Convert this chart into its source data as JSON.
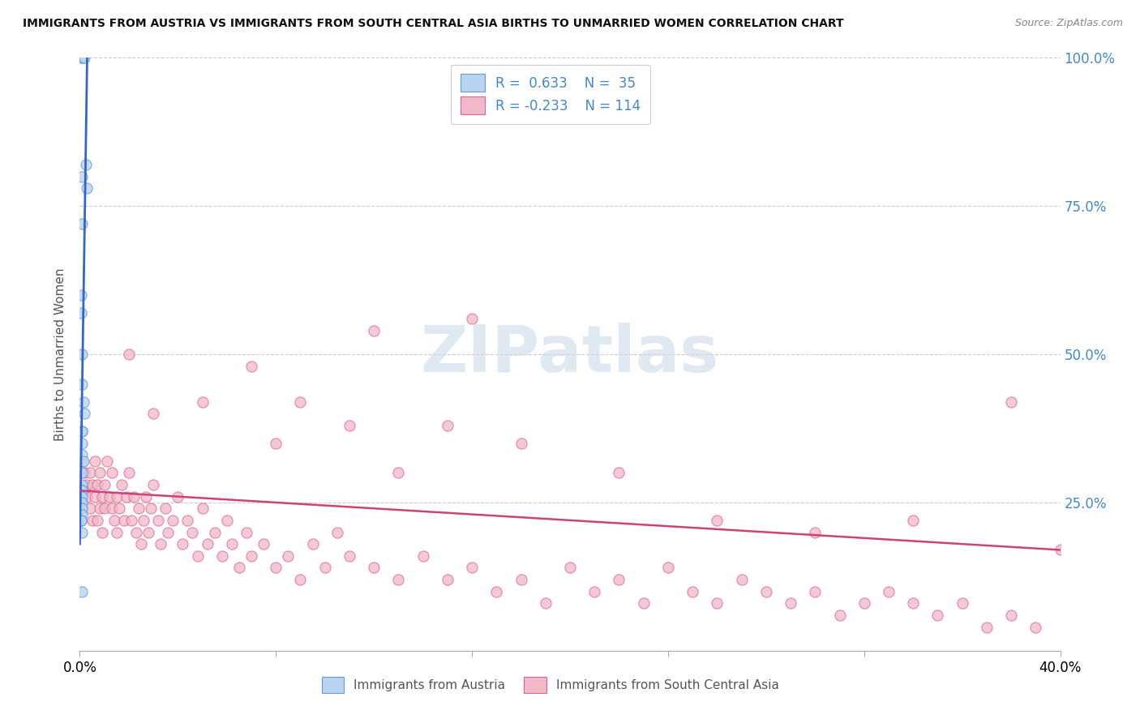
{
  "title": "IMMIGRANTS FROM AUSTRIA VS IMMIGRANTS FROM SOUTH CENTRAL ASIA BIRTHS TO UNMARRIED WOMEN CORRELATION CHART",
  "source": "Source: ZipAtlas.com",
  "ylabel": "Births to Unmarried Women",
  "xlim": [
    0.0,
    0.4
  ],
  "ylim": [
    0.0,
    1.0
  ],
  "yticks": [
    0.0,
    0.25,
    0.5,
    0.75,
    1.0
  ],
  "ytick_labels_right": [
    "",
    "25.0%",
    "50.0%",
    "75.0%",
    "100.0%"
  ],
  "xticks": [
    0.0,
    0.08,
    0.16,
    0.24,
    0.32,
    0.4
  ],
  "xtick_labels": [
    "0.0%",
    "",
    "",
    "",
    "",
    "40.0%"
  ],
  "legend_r_austria": "0.633",
  "legend_n_austria": "35",
  "legend_r_sca": "-0.233",
  "legend_n_sca": "114",
  "color_austria_fill": "#b8d4f0",
  "color_austria_edge": "#6699dd",
  "color_sca_fill": "#f0b8c8",
  "color_sca_edge": "#dd6688",
  "trendline_austria_color": "#3366cc",
  "trendline_sca_color": "#cc4477",
  "legend_text_color": "#4488cc",
  "background_color": "#ffffff",
  "watermark_text": "ZIPatlas",
  "watermark_color": "#c8d8e8",
  "austria_x": [
    0.0005,
    0.001,
    0.0015,
    0.002,
    0.0025,
    0.003,
    0.001,
    0.001,
    0.0005,
    0.0005,
    0.001,
    0.001,
    0.0015,
    0.002,
    0.001,
    0.001,
    0.001,
    0.001,
    0.0015,
    0.001,
    0.001,
    0.0005,
    0.001,
    0.001,
    0.0005,
    0.001,
    0.0005,
    0.001,
    0.0005,
    0.001,
    0.001,
    0.0005,
    0.0005,
    0.001,
    0.001
  ],
  "austria_y": [
    1.0,
    1.0,
    1.0,
    1.0,
    0.82,
    0.78,
    0.8,
    0.72,
    0.6,
    0.57,
    0.5,
    0.45,
    0.42,
    0.4,
    0.37,
    0.37,
    0.35,
    0.33,
    0.32,
    0.3,
    0.28,
    0.27,
    0.27,
    0.27,
    0.26,
    0.26,
    0.25,
    0.25,
    0.24,
    0.24,
    0.23,
    0.22,
    0.22,
    0.2,
    0.1
  ],
  "austria_trendline_x": [
    0.0,
    0.003
  ],
  "austria_trendline_y": [
    0.18,
    1.0
  ],
  "sca_x": [
    0.001,
    0.002,
    0.002,
    0.003,
    0.003,
    0.004,
    0.004,
    0.005,
    0.005,
    0.006,
    0.006,
    0.007,
    0.007,
    0.008,
    0.008,
    0.009,
    0.009,
    0.01,
    0.01,
    0.011,
    0.012,
    0.013,
    0.013,
    0.014,
    0.015,
    0.015,
    0.016,
    0.017,
    0.018,
    0.019,
    0.02,
    0.021,
    0.022,
    0.023,
    0.024,
    0.025,
    0.026,
    0.027,
    0.028,
    0.029,
    0.03,
    0.032,
    0.033,
    0.035,
    0.036,
    0.038,
    0.04,
    0.042,
    0.044,
    0.046,
    0.048,
    0.05,
    0.052,
    0.055,
    0.058,
    0.06,
    0.062,
    0.065,
    0.068,
    0.07,
    0.075,
    0.08,
    0.085,
    0.09,
    0.095,
    0.1,
    0.105,
    0.11,
    0.12,
    0.13,
    0.14,
    0.15,
    0.16,
    0.17,
    0.18,
    0.19,
    0.2,
    0.21,
    0.22,
    0.23,
    0.24,
    0.25,
    0.26,
    0.27,
    0.28,
    0.29,
    0.3,
    0.31,
    0.32,
    0.33,
    0.34,
    0.35,
    0.36,
    0.37,
    0.38,
    0.39,
    0.4,
    0.15,
    0.08,
    0.05,
    0.03,
    0.02,
    0.07,
    0.09,
    0.11,
    0.13,
    0.18,
    0.22,
    0.26,
    0.3,
    0.34,
    0.38,
    0.12,
    0.16
  ],
  "sca_y": [
    0.32,
    0.27,
    0.3,
    0.28,
    0.26,
    0.3,
    0.24,
    0.28,
    0.22,
    0.32,
    0.26,
    0.28,
    0.22,
    0.3,
    0.24,
    0.26,
    0.2,
    0.28,
    0.24,
    0.32,
    0.26,
    0.24,
    0.3,
    0.22,
    0.26,
    0.2,
    0.24,
    0.28,
    0.22,
    0.26,
    0.3,
    0.22,
    0.26,
    0.2,
    0.24,
    0.18,
    0.22,
    0.26,
    0.2,
    0.24,
    0.28,
    0.22,
    0.18,
    0.24,
    0.2,
    0.22,
    0.26,
    0.18,
    0.22,
    0.2,
    0.16,
    0.24,
    0.18,
    0.2,
    0.16,
    0.22,
    0.18,
    0.14,
    0.2,
    0.16,
    0.18,
    0.14,
    0.16,
    0.12,
    0.18,
    0.14,
    0.2,
    0.16,
    0.14,
    0.12,
    0.16,
    0.12,
    0.14,
    0.1,
    0.12,
    0.08,
    0.14,
    0.1,
    0.12,
    0.08,
    0.14,
    0.1,
    0.08,
    0.12,
    0.1,
    0.08,
    0.1,
    0.06,
    0.08,
    0.1,
    0.08,
    0.06,
    0.08,
    0.04,
    0.06,
    0.04,
    0.17,
    0.38,
    0.35,
    0.42,
    0.4,
    0.5,
    0.48,
    0.42,
    0.38,
    0.3,
    0.35,
    0.3,
    0.22,
    0.2,
    0.22,
    0.42,
    0.54,
    0.56
  ],
  "sca_trendline_x": [
    0.0,
    0.4
  ],
  "sca_trendline_y": [
    0.27,
    0.17
  ]
}
